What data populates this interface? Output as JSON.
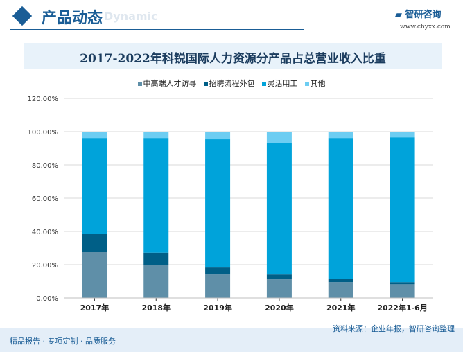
{
  "header": {
    "title": "产品动态",
    "subtitle": "Dynamic",
    "logo_name": "智研咨询",
    "logo_url": "www.chyxx.com"
  },
  "footer": {
    "left": "精品报告 · 专项定制 · 品质服务",
    "source": "资料来源：企业年报，智研咨询整理"
  },
  "chart_data": {
    "type": "bar",
    "stacked": true,
    "title": "2017-2022年科锐国际人力资源分产品占总营业收入比重",
    "categories": [
      "2017年",
      "2018年",
      "2019年",
      "2020年",
      "2021年",
      "2022年1-6月"
    ],
    "series": [
      {
        "name": "中高端人才访寻",
        "color": "#5f8fa8",
        "values": [
          27.7,
          20.0,
          14.1,
          11.2,
          9.5,
          8.2
        ]
      },
      {
        "name": "招聘流程外包",
        "color": "#005f87",
        "values": [
          10.8,
          7.2,
          4.2,
          2.9,
          2.1,
          1.3
        ]
      },
      {
        "name": "灵活用工",
        "color": "#00a3da",
        "values": [
          57.7,
          69.0,
          77.1,
          79.2,
          84.6,
          87.1
        ]
      },
      {
        "name": "其他",
        "color": "#6dcdf2",
        "values": [
          3.8,
          3.8,
          4.6,
          6.7,
          3.8,
          3.4
        ]
      }
    ],
    "yticks": [
      "0.00%",
      "20.00%",
      "40.00%",
      "60.00%",
      "80.00%",
      "100.00%",
      "120.00%"
    ],
    "ylim": [
      0,
      120
    ],
    "grid": true,
    "legend": "top"
  }
}
